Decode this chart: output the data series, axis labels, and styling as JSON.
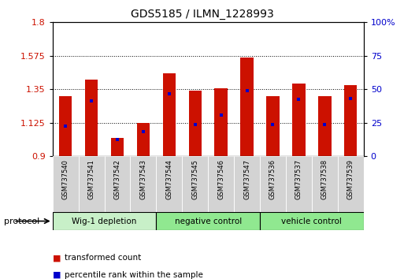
{
  "title": "GDS5185 / ILMN_1228993",
  "samples": [
    "GSM737540",
    "GSM737541",
    "GSM737542",
    "GSM737543",
    "GSM737544",
    "GSM737545",
    "GSM737546",
    "GSM737547",
    "GSM737536",
    "GSM737537",
    "GSM737538",
    "GSM737539"
  ],
  "bar_heights": [
    1.305,
    1.415,
    1.025,
    1.125,
    1.46,
    1.34,
    1.355,
    1.565,
    1.305,
    1.39,
    1.305,
    1.38
  ],
  "blue_marker_y": [
    1.1,
    1.27,
    1.015,
    1.065,
    1.32,
    1.115,
    1.175,
    1.34,
    1.115,
    1.285,
    1.115,
    1.29
  ],
  "group_data": [
    {
      "label": "Wig-1 depletion",
      "start": 0,
      "end": 4,
      "color": "#c8f0c8"
    },
    {
      "label": "negative control",
      "start": 4,
      "end": 8,
      "color": "#90e890"
    },
    {
      "label": "vehicle control",
      "start": 8,
      "end": 12,
      "color": "#90e890"
    }
  ],
  "protocol_label": "protocol",
  "y_min": 0.9,
  "y_max": 1.8,
  "y_ticks_left": [
    0.9,
    1.125,
    1.35,
    1.575,
    1.8
  ],
  "y_ticks_right": [
    0,
    25,
    50,
    75,
    100
  ],
  "bar_color": "#cc1100",
  "blue_color": "#0000cc",
  "background_color": "#ffffff",
  "plot_bg_color": "#ffffff",
  "grid_color": "#000000",
  "tick_label_bg": "#d3d3d3",
  "group_border_color": "#000000",
  "legend_items": [
    {
      "label": "transformed count",
      "color": "#cc1100"
    },
    {
      "label": "percentile rank within the sample",
      "color": "#0000cc"
    }
  ],
  "bar_width": 0.5
}
